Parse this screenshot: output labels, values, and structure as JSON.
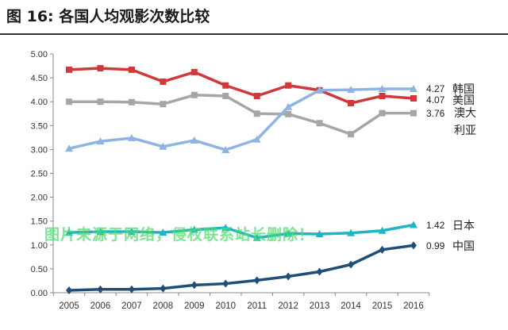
{
  "title": "图 16:  各国人均观影次数比较",
  "watermark": "图片来源于网络，侵权联系站长删除！",
  "chart_data": {
    "type": "line",
    "title": "各国人均观影次数比较",
    "xlabel": "",
    "ylabel": "",
    "ylim": [
      0,
      5
    ],
    "yticks": [
      "0.00",
      "0.50",
      "1.00",
      "1.50",
      "2.00",
      "2.50",
      "3.00",
      "3.50",
      "4.00",
      "4.50",
      "5.00"
    ],
    "categories": [
      "2005",
      "2006",
      "2007",
      "2008",
      "2009",
      "2010",
      "2011",
      "2012",
      "2013",
      "2014",
      "2015",
      "2016"
    ],
    "series": [
      {
        "name": "美国",
        "end_label": "4.07",
        "color": "#d0383a",
        "marker": "square",
        "values": [
          4.67,
          4.7,
          4.67,
          4.42,
          4.62,
          4.34,
          4.12,
          4.34,
          4.24,
          3.97,
          4.12,
          4.07
        ]
      },
      {
        "name": "澳大利亚",
        "end_label": "3.76",
        "color": "#a6a6a6",
        "marker": "square",
        "values": [
          4.0,
          4.0,
          3.99,
          3.95,
          4.14,
          4.12,
          3.75,
          3.74,
          3.55,
          3.32,
          3.76,
          3.76
        ]
      },
      {
        "name": "韩国",
        "end_label": "4.27",
        "color": "#8db4e2",
        "marker": "triangle",
        "values": [
          3.02,
          3.17,
          3.24,
          3.06,
          3.19,
          2.99,
          3.21,
          3.89,
          4.24,
          4.25,
          4.27,
          4.27
        ]
      },
      {
        "name": "日本",
        "end_label": "1.42",
        "color": "#1fb5c4",
        "marker": "triangle",
        "values": [
          1.26,
          1.28,
          1.28,
          1.26,
          1.32,
          1.36,
          1.15,
          1.24,
          1.23,
          1.25,
          1.3,
          1.42
        ]
      },
      {
        "name": "中国",
        "end_label": "0.99",
        "color": "#1f4e79",
        "marker": "diamond",
        "values": [
          0.05,
          0.07,
          0.07,
          0.09,
          0.16,
          0.19,
          0.26,
          0.34,
          0.44,
          0.59,
          0.9,
          0.99
        ]
      }
    ]
  }
}
